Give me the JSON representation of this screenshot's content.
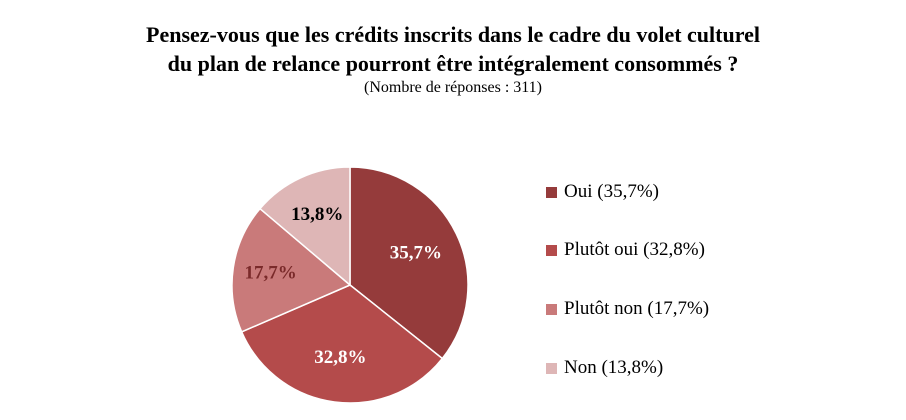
{
  "chart_data": {
    "type": "pie",
    "title_line1": "Pensez-vous que les crédits inscrits dans le cadre du volet culturel",
    "title_line2": "du plan de relance pourront être intégralement consommés ?",
    "subtitle": "(Nombre de réponses : 311)",
    "slices": [
      {
        "legend": "Oui (35,7%)",
        "value": 35.7,
        "label": "35,7%",
        "color": "#953b3b",
        "label_color": "#ffffff"
      },
      {
        "legend": "Plutôt oui (32,8%)",
        "value": 32.8,
        "label": "32,8%",
        "color": "#b44b4b",
        "label_color": "#ffffff"
      },
      {
        "legend": "Plutôt non (17,7%)",
        "value": 17.7,
        "label": "17,7%",
        "color": "#c97a7a",
        "label_color": "#7a2a2a"
      },
      {
        "legend": "Non (13,8%)",
        "value": 13.8,
        "label": "13,8%",
        "color": "#deb6b6",
        "label_color": "#000000"
      }
    ],
    "legend_position": "right"
  }
}
